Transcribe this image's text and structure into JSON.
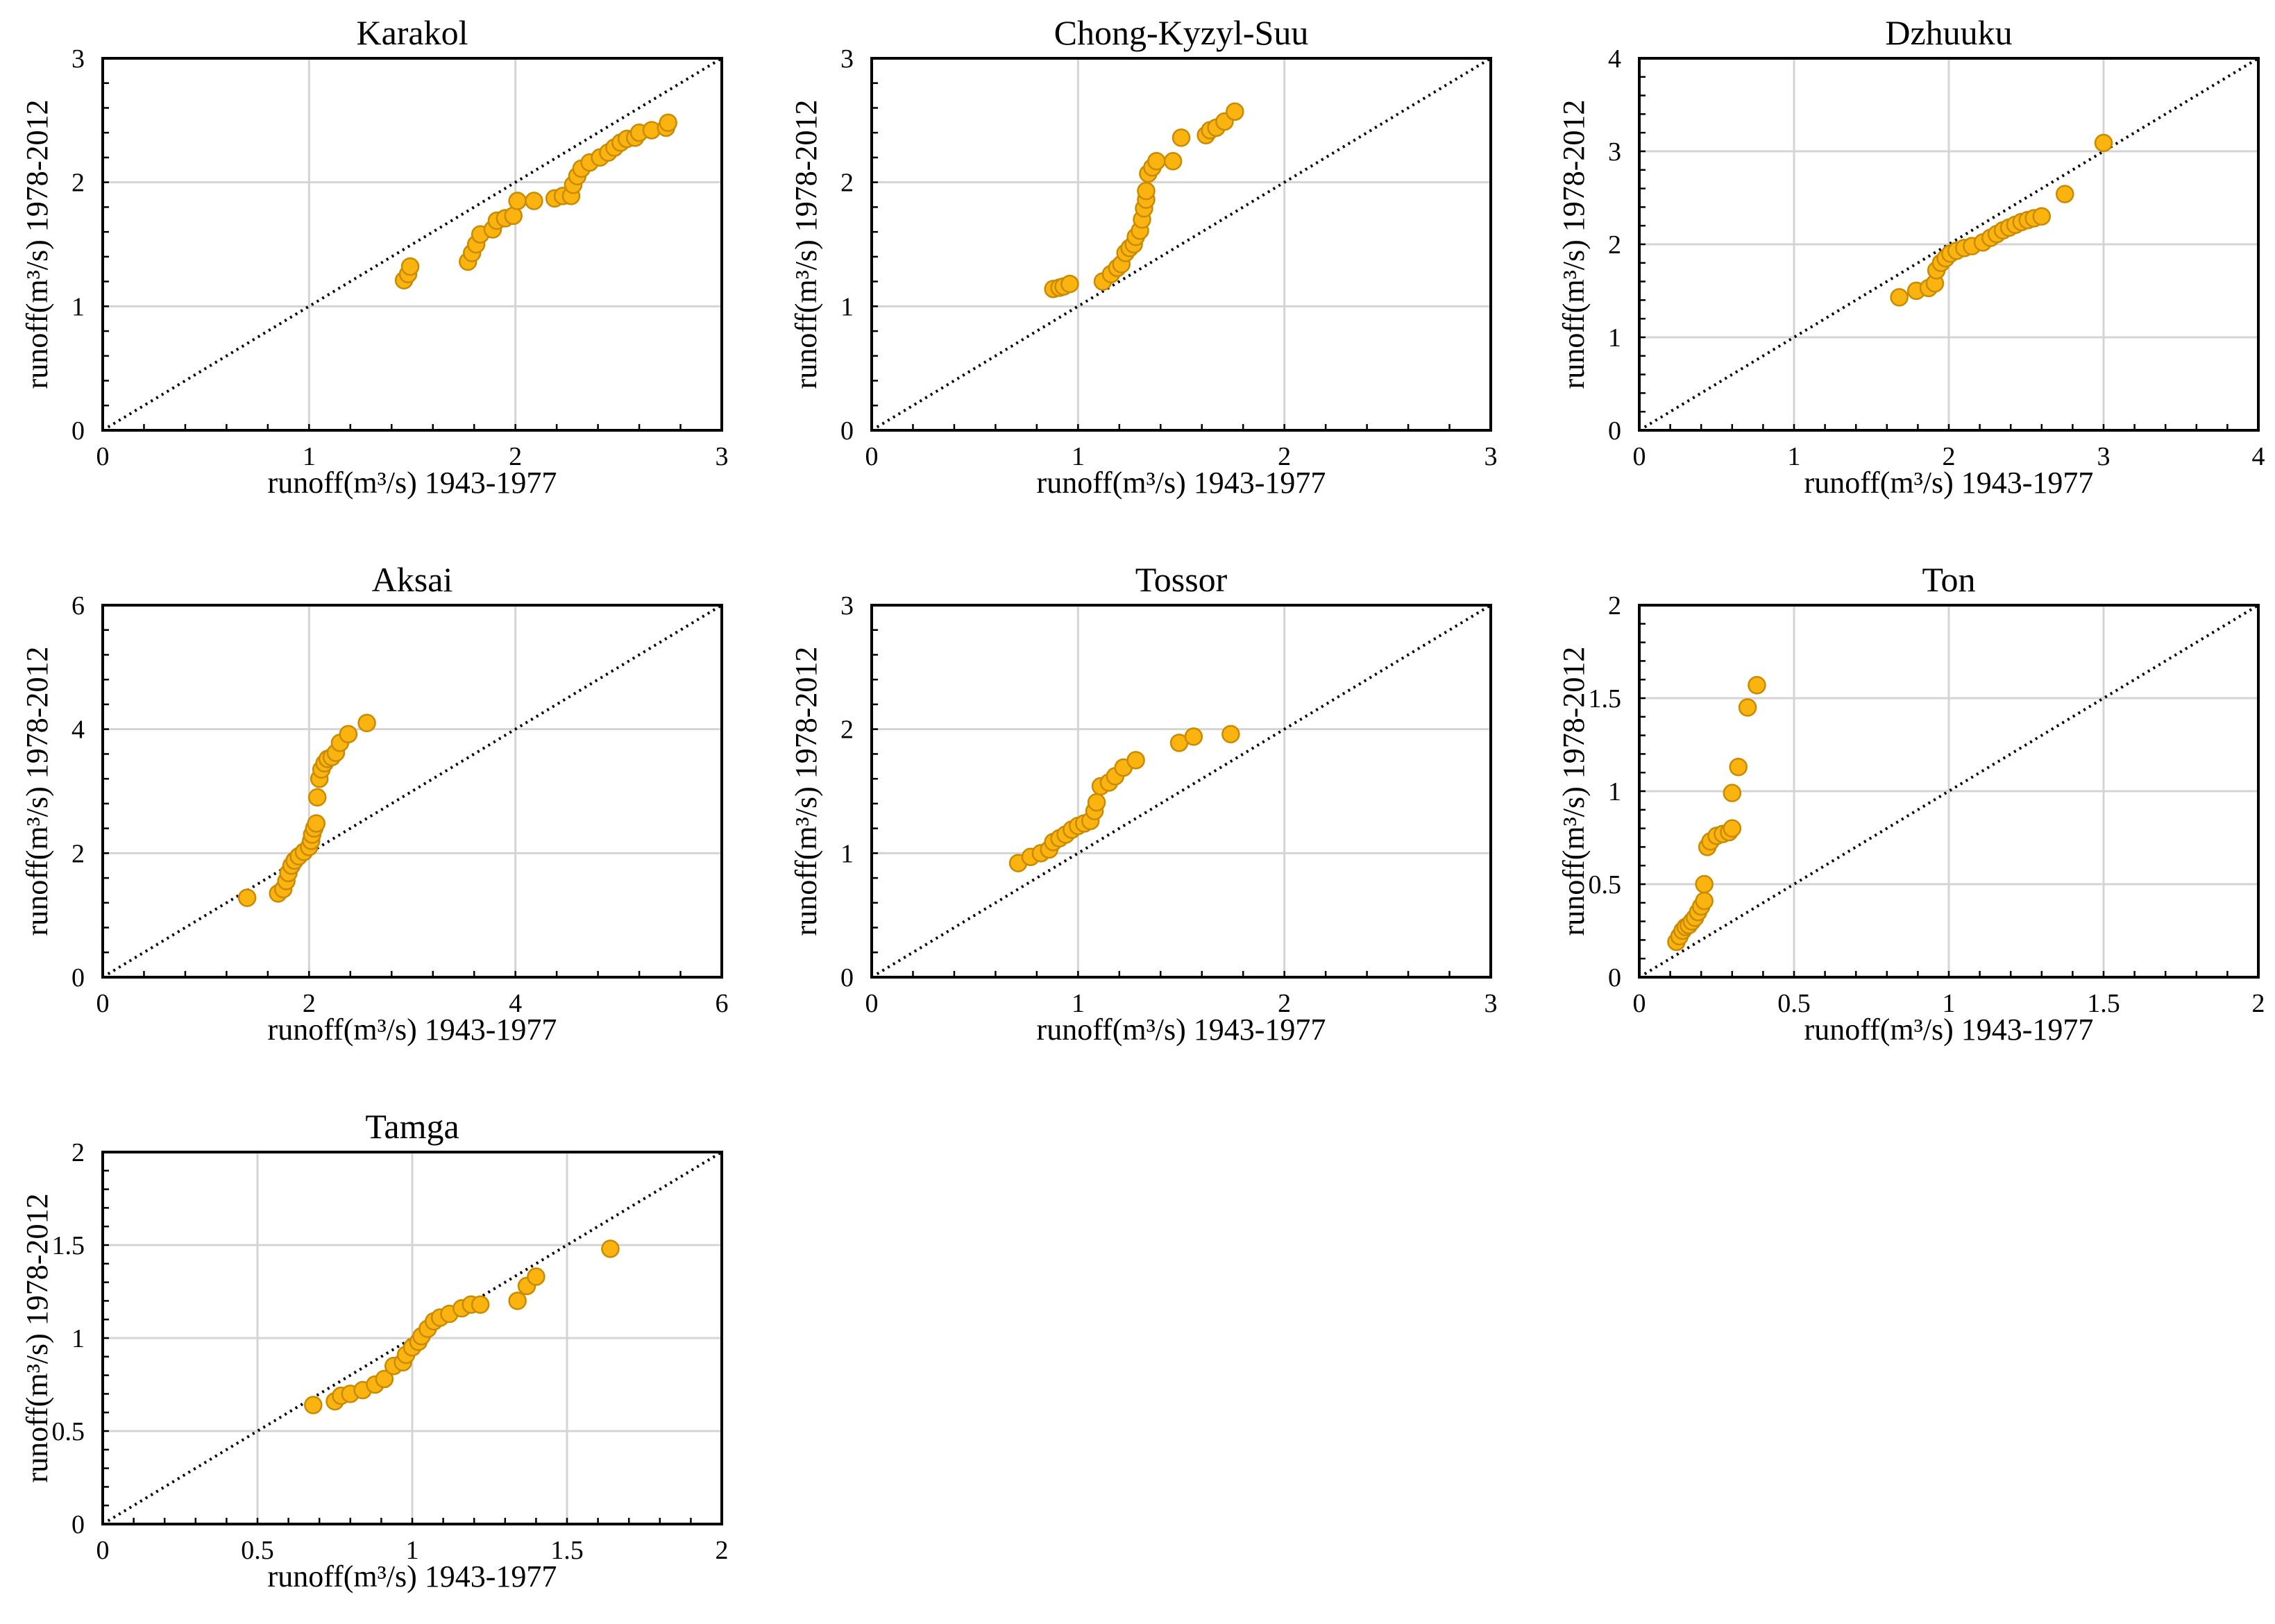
{
  "chart_data": [
    {
      "type": "scatter",
      "title": "Karakol",
      "xlabel": "runoff(m³/s) 1943-1977",
      "ylabel": "runoff(m³/s) 1978-2012",
      "xlim": [
        0,
        3
      ],
      "ylim": [
        0,
        3
      ],
      "xticks": [
        0,
        1,
        2,
        3
      ],
      "yticks": [
        0,
        1,
        2,
        3
      ],
      "xtick_labels": [
        "0",
        "1",
        "2",
        "3"
      ],
      "ytick_labels": [
        "0",
        "1",
        "2",
        "3"
      ],
      "grid": true,
      "reference_line": "1:1",
      "points": [
        [
          1.46,
          1.21
        ],
        [
          1.48,
          1.26
        ],
        [
          1.49,
          1.32
        ],
        [
          1.77,
          1.36
        ],
        [
          1.79,
          1.43
        ],
        [
          1.81,
          1.5
        ],
        [
          1.83,
          1.58
        ],
        [
          1.89,
          1.62
        ],
        [
          1.91,
          1.69
        ],
        [
          1.95,
          1.71
        ],
        [
          1.99,
          1.73
        ],
        [
          2.01,
          1.85
        ],
        [
          2.09,
          1.85
        ],
        [
          2.19,
          1.87
        ],
        [
          2.23,
          1.89
        ],
        [
          2.27,
          1.89
        ],
        [
          2.28,
          1.98
        ],
        [
          2.3,
          2.05
        ],
        [
          2.32,
          2.11
        ],
        [
          2.36,
          2.16
        ],
        [
          2.41,
          2.2
        ],
        [
          2.45,
          2.24
        ],
        [
          2.48,
          2.28
        ],
        [
          2.51,
          2.32
        ],
        [
          2.54,
          2.35
        ],
        [
          2.58,
          2.36
        ],
        [
          2.6,
          2.4
        ],
        [
          2.66,
          2.42
        ],
        [
          2.73,
          2.44
        ],
        [
          2.74,
          2.48
        ]
      ],
      "colors": {
        "point": "#fbb40f",
        "point_edge": "#c98a00",
        "grid": "#d4d4d4"
      }
    },
    {
      "type": "scatter",
      "title": "Chong-Kyzyl-Suu",
      "xlabel": "runoff(m³/s) 1943-1977",
      "ylabel": "runoff(m³/s) 1978-2012",
      "xlim": [
        0,
        3
      ],
      "ylim": [
        0,
        3
      ],
      "xticks": [
        0,
        1,
        2,
        3
      ],
      "yticks": [
        0,
        1,
        2,
        3
      ],
      "xtick_labels": [
        "0",
        "1",
        "2",
        "3"
      ],
      "ytick_labels": [
        "0",
        "1",
        "2",
        "3"
      ],
      "grid": true,
      "reference_line": "1:1",
      "points": [
        [
          0.88,
          1.14
        ],
        [
          0.91,
          1.15
        ],
        [
          0.93,
          1.16
        ],
        [
          0.96,
          1.18
        ],
        [
          1.12,
          1.2
        ],
        [
          1.16,
          1.26
        ],
        [
          1.19,
          1.31
        ],
        [
          1.21,
          1.34
        ],
        [
          1.23,
          1.43
        ],
        [
          1.25,
          1.47
        ],
        [
          1.27,
          1.5
        ],
        [
          1.28,
          1.56
        ],
        [
          1.3,
          1.61
        ],
        [
          1.31,
          1.7
        ],
        [
          1.32,
          1.79
        ],
        [
          1.33,
          1.86
        ],
        [
          1.33,
          1.93
        ],
        [
          1.34,
          2.07
        ],
        [
          1.36,
          2.12
        ],
        [
          1.38,
          2.17
        ],
        [
          1.46,
          2.17
        ],
        [
          1.5,
          2.36
        ],
        [
          1.62,
          2.38
        ],
        [
          1.64,
          2.42
        ],
        [
          1.67,
          2.44
        ],
        [
          1.71,
          2.49
        ],
        [
          1.76,
          2.57
        ]
      ],
      "colors": {
        "point": "#fbb40f",
        "point_edge": "#c98a00",
        "grid": "#d4d4d4"
      }
    },
    {
      "type": "scatter",
      "title": "Dzhuuku",
      "xlabel": "runoff(m³/s) 1943-1977",
      "ylabel": "runoff(m³/s) 1978-2012",
      "xlim": [
        0,
        4
      ],
      "ylim": [
        0,
        4
      ],
      "xticks": [
        0,
        1,
        2,
        3,
        4
      ],
      "yticks": [
        0,
        1,
        2,
        3,
        4
      ],
      "xtick_labels": [
        "0",
        "1",
        "2",
        "3",
        "4"
      ],
      "ytick_labels": [
        "0",
        "1",
        "2",
        "3",
        "4"
      ],
      "grid": true,
      "reference_line": "1:1",
      "points": [
        [
          1.68,
          1.43
        ],
        [
          1.79,
          1.5
        ],
        [
          1.87,
          1.53
        ],
        [
          1.91,
          1.58
        ],
        [
          1.92,
          1.72
        ],
        [
          1.95,
          1.8
        ],
        [
          1.98,
          1.85
        ],
        [
          2.01,
          1.9
        ],
        [
          2.05,
          1.93
        ],
        [
          2.1,
          1.96
        ],
        [
          2.15,
          1.98
        ],
        [
          2.22,
          2.02
        ],
        [
          2.27,
          2.07
        ],
        [
          2.31,
          2.11
        ],
        [
          2.35,
          2.15
        ],
        [
          2.39,
          2.18
        ],
        [
          2.43,
          2.21
        ],
        [
          2.47,
          2.24
        ],
        [
          2.51,
          2.26
        ],
        [
          2.55,
          2.28
        ],
        [
          2.6,
          2.3
        ],
        [
          2.75,
          2.54
        ],
        [
          3.0,
          3.09
        ]
      ],
      "colors": {
        "point": "#fbb40f",
        "point_edge": "#c98a00",
        "grid": "#d4d4d4"
      }
    },
    {
      "type": "scatter",
      "title": "Aksai",
      "xlabel": "runoff(m³/s) 1943-1977",
      "ylabel": "runoff(m³/s) 1978-2012",
      "xlim": [
        0,
        6
      ],
      "ylim": [
        0,
        6
      ],
      "xticks": [
        0,
        2,
        4,
        6
      ],
      "yticks": [
        0,
        2,
        4,
        6
      ],
      "xtick_labels": [
        "0",
        "2",
        "4",
        "6"
      ],
      "ytick_labels": [
        "0",
        "2",
        "4",
        "6"
      ],
      "grid": true,
      "reference_line": "1:1",
      "points": [
        [
          1.4,
          1.28
        ],
        [
          1.7,
          1.35
        ],
        [
          1.75,
          1.42
        ],
        [
          1.78,
          1.55
        ],
        [
          1.8,
          1.68
        ],
        [
          1.83,
          1.8
        ],
        [
          1.86,
          1.88
        ],
        [
          1.9,
          1.95
        ],
        [
          1.95,
          2.02
        ],
        [
          2.0,
          2.1
        ],
        [
          2.02,
          2.2
        ],
        [
          2.03,
          2.3
        ],
        [
          2.05,
          2.4
        ],
        [
          2.07,
          2.48
        ],
        [
          2.08,
          2.9
        ],
        [
          2.1,
          3.2
        ],
        [
          2.12,
          3.35
        ],
        [
          2.15,
          3.45
        ],
        [
          2.18,
          3.52
        ],
        [
          2.22,
          3.55
        ],
        [
          2.26,
          3.62
        ],
        [
          2.3,
          3.78
        ],
        [
          2.38,
          3.92
        ],
        [
          2.56,
          4.1
        ]
      ],
      "colors": {
        "point": "#fbb40f",
        "point_edge": "#c98a00",
        "grid": "#d4d4d4"
      }
    },
    {
      "type": "scatter",
      "title": "Tossor",
      "xlabel": "runoff(m³/s) 1943-1977",
      "ylabel": "runoff(m³/s) 1978-2012",
      "xlim": [
        0,
        3
      ],
      "ylim": [
        0,
        3
      ],
      "xticks": [
        0,
        1,
        2,
        3
      ],
      "yticks": [
        0,
        1,
        2,
        3
      ],
      "xtick_labels": [
        "0",
        "1",
        "2",
        "3"
      ],
      "ytick_labels": [
        "0",
        "1",
        "2",
        "3"
      ],
      "grid": true,
      "reference_line": "1:1",
      "points": [
        [
          0.71,
          0.92
        ],
        [
          0.77,
          0.97
        ],
        [
          0.82,
          1.0
        ],
        [
          0.86,
          1.03
        ],
        [
          0.88,
          1.09
        ],
        [
          0.91,
          1.12
        ],
        [
          0.94,
          1.15
        ],
        [
          0.97,
          1.19
        ],
        [
          1.0,
          1.22
        ],
        [
          1.03,
          1.24
        ],
        [
          1.06,
          1.26
        ],
        [
          1.08,
          1.34
        ],
        [
          1.09,
          1.41
        ],
        [
          1.11,
          1.54
        ],
        [
          1.15,
          1.57
        ],
        [
          1.18,
          1.62
        ],
        [
          1.22,
          1.69
        ],
        [
          1.28,
          1.75
        ],
        [
          1.49,
          1.89
        ],
        [
          1.56,
          1.94
        ],
        [
          1.74,
          1.96
        ]
      ],
      "colors": {
        "point": "#fbb40f",
        "point_edge": "#c98a00",
        "grid": "#d4d4d4"
      }
    },
    {
      "type": "scatter",
      "title": "Ton",
      "xlabel": "runoff(m³/s) 1943-1977",
      "ylabel": "runoff(m³/s) 1978-2012",
      "xlim": [
        0,
        2
      ],
      "ylim": [
        0,
        2
      ],
      "xticks": [
        0,
        0.5,
        1,
        1.5,
        2
      ],
      "yticks": [
        0,
        0.5,
        1,
        1.5,
        2
      ],
      "xtick_labels": [
        "0",
        "0.5",
        "1",
        "1.5",
        "2"
      ],
      "ytick_labels": [
        "0",
        "0.5",
        "1",
        "1.5",
        "2"
      ],
      "grid": true,
      "reference_line": "1:1",
      "points": [
        [
          0.12,
          0.19
        ],
        [
          0.13,
          0.22
        ],
        [
          0.14,
          0.25
        ],
        [
          0.15,
          0.27
        ],
        [
          0.16,
          0.28
        ],
        [
          0.17,
          0.3
        ],
        [
          0.18,
          0.32
        ],
        [
          0.19,
          0.35
        ],
        [
          0.2,
          0.38
        ],
        [
          0.21,
          0.41
        ],
        [
          0.21,
          0.5
        ],
        [
          0.22,
          0.7
        ],
        [
          0.23,
          0.73
        ],
        [
          0.25,
          0.76
        ],
        [
          0.27,
          0.77
        ],
        [
          0.29,
          0.78
        ],
        [
          0.3,
          0.8
        ],
        [
          0.3,
          0.99
        ],
        [
          0.32,
          1.13
        ],
        [
          0.35,
          1.45
        ],
        [
          0.38,
          1.57
        ]
      ],
      "colors": {
        "point": "#fbb40f",
        "point_edge": "#c98a00",
        "grid": "#d4d4d4"
      }
    },
    {
      "type": "scatter",
      "title": "Tamga",
      "xlabel": "runoff(m³/s) 1943-1977",
      "ylabel": "runoff(m³/s) 1978-2012",
      "xlim": [
        0,
        2
      ],
      "ylim": [
        0,
        2
      ],
      "xticks": [
        0,
        0.5,
        1,
        1.5,
        2
      ],
      "yticks": [
        0,
        0.5,
        1,
        1.5,
        2
      ],
      "xtick_labels": [
        "0",
        "0.5",
        "1",
        "1.5",
        "2"
      ],
      "ytick_labels": [
        "0",
        "0.5",
        "1",
        "1.5",
        "2"
      ],
      "grid": true,
      "reference_line": "1:1",
      "points": [
        [
          0.68,
          0.64
        ],
        [
          0.75,
          0.66
        ],
        [
          0.77,
          0.69
        ],
        [
          0.8,
          0.7
        ],
        [
          0.84,
          0.72
        ],
        [
          0.88,
          0.75
        ],
        [
          0.91,
          0.78
        ],
        [
          0.94,
          0.85
        ],
        [
          0.97,
          0.87
        ],
        [
          0.98,
          0.91
        ],
        [
          1.0,
          0.95
        ],
        [
          1.02,
          0.98
        ],
        [
          1.03,
          1.01
        ],
        [
          1.05,
          1.05
        ],
        [
          1.07,
          1.09
        ],
        [
          1.09,
          1.11
        ],
        [
          1.12,
          1.13
        ],
        [
          1.16,
          1.16
        ],
        [
          1.19,
          1.18
        ],
        [
          1.22,
          1.18
        ],
        [
          1.34,
          1.2
        ],
        [
          1.37,
          1.28
        ],
        [
          1.4,
          1.33
        ],
        [
          1.64,
          1.48
        ]
      ],
      "colors": {
        "point": "#fbb40f",
        "point_edge": "#c98a00",
        "grid": "#d4d4d4"
      }
    }
  ]
}
